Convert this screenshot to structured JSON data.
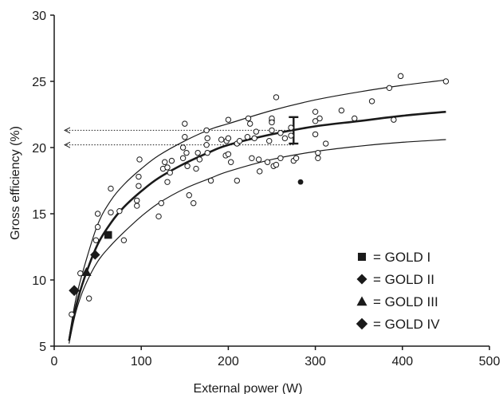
{
  "chart_data": {
    "type": "scatter",
    "title": "",
    "xlabel": "External power (W)",
    "ylabel": "Gross efficiency (%)",
    "xlim": [
      0,
      500
    ],
    "ylim": [
      5,
      30
    ],
    "xticks": [
      0,
      100,
      200,
      300,
      400,
      500
    ],
    "yticks": [
      5,
      10,
      15,
      20,
      25,
      30
    ],
    "grid": false,
    "legend_placement": "bottom-right",
    "colors": {
      "ink": "#1a1a1a",
      "marker_fill": "#ffffff"
    },
    "legend": [
      {
        "label": "= GOLD I",
        "marker": "square"
      },
      {
        "label": "= GOLD II",
        "marker": "diamond"
      },
      {
        "label": "= GOLD III",
        "marker": "triangle"
      },
      {
        "label": "= GOLD IV",
        "marker": "clover"
      }
    ],
    "fit_curves": [
      {
        "role": "mean",
        "x": [
          17,
          25,
          35,
          50,
          65,
          80,
          100,
          120,
          150,
          180,
          200,
          250,
          300,
          350,
          400,
          450
        ],
        "y": [
          5.4,
          8.0,
          10.2,
          12.7,
          14.3,
          15.5,
          16.7,
          17.7,
          18.8,
          19.7,
          20.2,
          21.0,
          21.6,
          22.0,
          22.4,
          22.7
        ]
      },
      {
        "role": "upper",
        "x": [
          17,
          25,
          35,
          50,
          65,
          80,
          100,
          120,
          150,
          180,
          200,
          250,
          300,
          350,
          400,
          450
        ],
        "y": [
          5.6,
          8.6,
          11.1,
          14.2,
          16.0,
          17.2,
          18.4,
          19.4,
          20.5,
          21.4,
          21.8,
          22.8,
          23.6,
          24.2,
          24.7,
          25.1
        ]
      },
      {
        "role": "lower",
        "x": [
          17,
          25,
          35,
          50,
          65,
          80,
          100,
          120,
          150,
          180,
          200,
          250,
          300,
          350,
          400,
          450
        ],
        "y": [
          5.2,
          7.6,
          9.5,
          11.4,
          12.6,
          13.6,
          14.8,
          15.8,
          16.9,
          17.7,
          18.2,
          19.1,
          19.7,
          20.1,
          20.4,
          20.6
        ]
      }
    ],
    "error_bar": {
      "x": 275,
      "y_low": 20.3,
      "y_high": 22.3
    },
    "reference_arrows": [
      {
        "y": 21.3,
        "x_from": 275,
        "x_to": 12
      },
      {
        "y": 20.2,
        "x_from": 275,
        "x_to": 12
      }
    ],
    "series": [
      {
        "name": "",
        "marker": "open-circle",
        "points": [
          [
            20,
            7.4
          ],
          [
            30,
            10.5
          ],
          [
            40,
            8.6
          ],
          [
            48,
            13.0
          ],
          [
            50,
            14.0
          ],
          [
            50,
            15.0
          ],
          [
            65,
            15.1
          ],
          [
            65,
            16.9
          ],
          [
            75,
            15.2
          ],
          [
            80,
            13.0
          ],
          [
            95,
            15.6
          ],
          [
            95,
            16.0
          ],
          [
            97,
            17.1
          ],
          [
            97,
            17.8
          ],
          [
            98,
            19.1
          ],
          [
            120,
            14.8
          ],
          [
            123,
            15.8
          ],
          [
            125,
            18.4
          ],
          [
            127,
            18.9
          ],
          [
            130,
            18.5
          ],
          [
            130,
            17.4
          ],
          [
            133,
            18.1
          ],
          [
            135,
            19.0
          ],
          [
            148,
            20.0
          ],
          [
            148,
            19.2
          ],
          [
            150,
            21.8
          ],
          [
            150,
            20.8
          ],
          [
            152,
            19.6
          ],
          [
            153,
            18.6
          ],
          [
            155,
            16.4
          ],
          [
            160,
            15.8
          ],
          [
            163,
            18.4
          ],
          [
            165,
            19.6
          ],
          [
            167,
            19.1
          ],
          [
            175,
            20.2
          ],
          [
            175,
            21.3
          ],
          [
            176,
            20.7
          ],
          [
            176,
            19.6
          ],
          [
            180,
            17.5
          ],
          [
            192,
            20.6
          ],
          [
            197,
            19.4
          ],
          [
            198,
            20.5
          ],
          [
            200,
            22.1
          ],
          [
            200,
            20.7
          ],
          [
            200,
            19.5
          ],
          [
            203,
            18.9
          ],
          [
            210,
            17.5
          ],
          [
            210,
            20.3
          ],
          [
            213,
            20.5
          ],
          [
            222,
            20.8
          ],
          [
            223,
            22.2
          ],
          [
            225,
            21.8
          ],
          [
            227,
            19.2
          ],
          [
            230,
            20.7
          ],
          [
            232,
            21.2
          ],
          [
            235,
            19.1
          ],
          [
            236,
            18.2
          ],
          [
            245,
            18.9
          ],
          [
            247,
            20.5
          ],
          [
            250,
            21.3
          ],
          [
            250,
            22.0
          ],
          [
            250,
            22.2
          ],
          [
            250,
            21.9
          ],
          [
            252,
            18.6
          ],
          [
            255,
            18.7
          ],
          [
            255,
            23.8
          ],
          [
            260,
            19.2
          ],
          [
            260,
            21.1
          ],
          [
            265,
            20.7
          ],
          [
            272,
            21.5
          ],
          [
            272,
            20.9
          ],
          [
            275,
            19.0
          ],
          [
            278,
            19.2
          ],
          [
            300,
            22.7
          ],
          [
            300,
            22.0
          ],
          [
            300,
            21.0
          ],
          [
            303,
            19.6
          ],
          [
            303,
            19.2
          ],
          [
            305,
            22.2
          ],
          [
            312,
            20.3
          ],
          [
            330,
            22.8
          ],
          [
            345,
            22.2
          ],
          [
            365,
            23.5
          ],
          [
            385,
            24.5
          ],
          [
            390,
            22.1
          ],
          [
            398,
            25.4
          ],
          [
            450,
            25.0
          ]
        ]
      },
      {
        "name": "GOLD I",
        "marker": "filled-square",
        "points": [
          [
            62,
            13.4
          ]
        ]
      },
      {
        "name": "GOLD II",
        "marker": "filled-diamond",
        "points": [
          [
            47,
            11.9
          ]
        ]
      },
      {
        "name": "GOLD III",
        "marker": "filled-triangle",
        "points": [
          [
            37,
            10.6
          ]
        ]
      },
      {
        "name": "GOLD IV",
        "marker": "clover",
        "points": [
          [
            23,
            9.2
          ]
        ]
      },
      {
        "name": "",
        "marker": "filled-circle",
        "points": [
          [
            283,
            17.4
          ]
        ]
      }
    ]
  }
}
